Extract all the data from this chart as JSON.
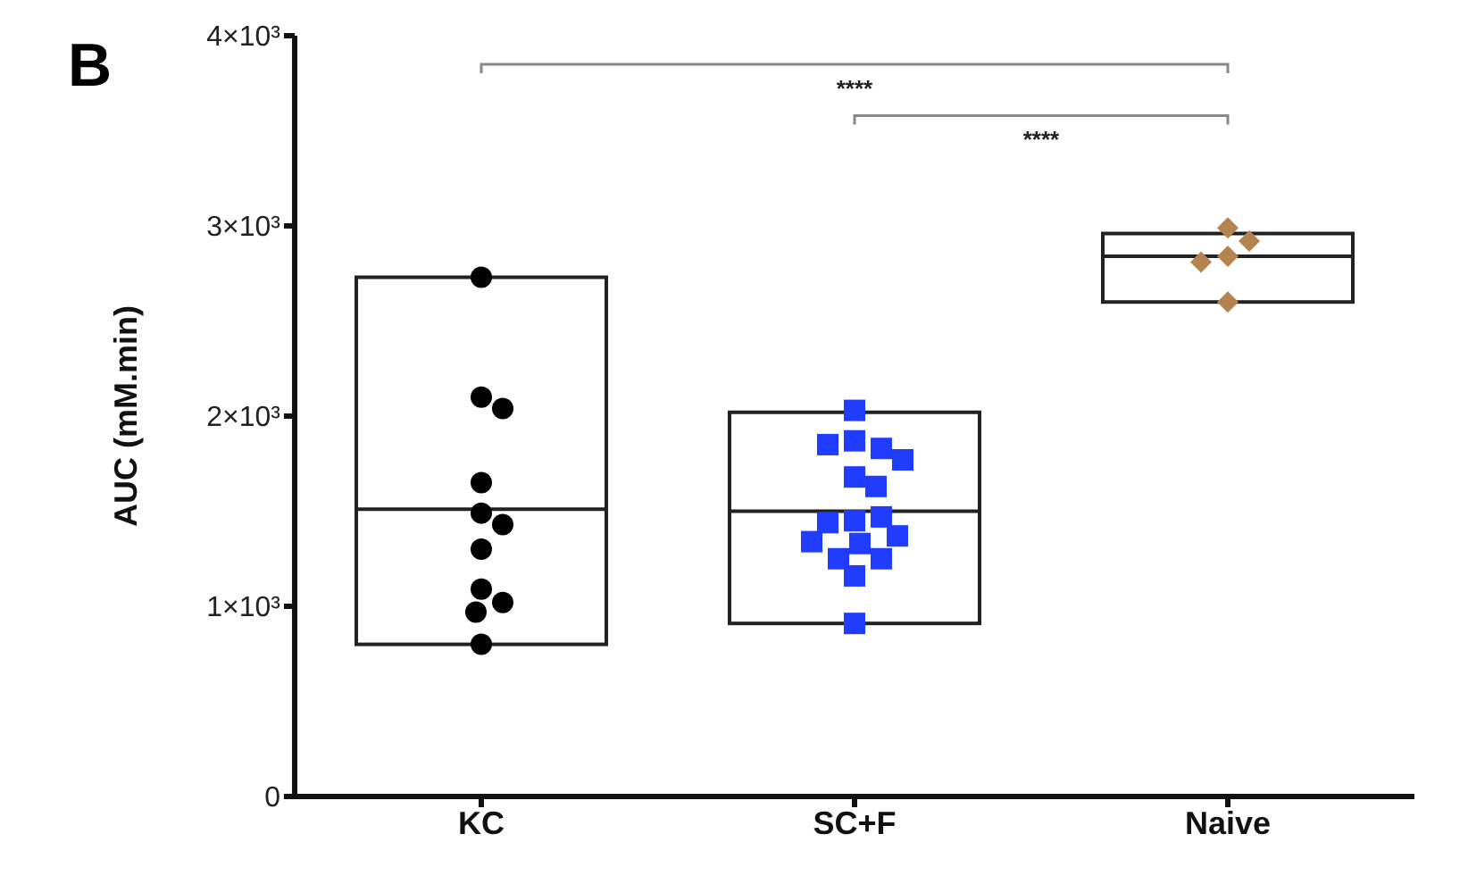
{
  "chart_data": {
    "type": "box",
    "title": "B",
    "ylabel": "AUC (mM.min)",
    "categories": [
      "KC",
      "SC+F",
      "Naive"
    ],
    "boxes": [
      {
        "low": 800,
        "q1": 800,
        "median": 1510,
        "q3": 2730,
        "high": 2730
      },
      {
        "low": 910,
        "q1": 910,
        "median": 1500,
        "q3": 2020,
        "high": 2020
      },
      {
        "low": 2600,
        "q1": 2600,
        "median": 2840,
        "q3": 2960,
        "high": 2960
      }
    ],
    "series": [
      {
        "type": "scatter",
        "color": "#000000",
        "marker": "circle",
        "x": [
          "KC",
          "KC",
          "KC",
          "KC",
          "KC",
          "KC",
          "KC",
          "KC",
          "KC",
          "KC",
          "KC"
        ],
        "values": [
          2730,
          2100,
          2040,
          1650,
          1490,
          1430,
          1300,
          1090,
          1020,
          970,
          800
        ]
      },
      {
        "type": "scatter",
        "color": "#1f3cff",
        "marker": "square",
        "x": [
          "SC+F",
          "SC+F",
          "SC+F",
          "SC+F",
          "SC+F",
          "SC+F",
          "SC+F",
          "SC+F",
          "SC+F",
          "SC+F",
          "SC+F",
          "SC+F",
          "SC+F",
          "SC+F",
          "SC+F",
          "SC+F",
          "SC+F"
        ],
        "values": [
          2030,
          1870,
          1830,
          1850,
          1770,
          1680,
          1630,
          1450,
          1470,
          1440,
          1370,
          1330,
          1340,
          1250,
          1250,
          1160,
          910
        ]
      },
      {
        "type": "scatter",
        "color": "#b5834f",
        "marker": "diamond",
        "x": [
          "Naive",
          "Naive",
          "Naive",
          "Naive",
          "Naive"
        ],
        "values": [
          2990,
          2920,
          2840,
          2810,
          2600
        ]
      }
    ],
    "ylim": [
      0,
      4000
    ],
    "yticks": [
      0,
      {
        "value": 1000,
        "label": "1×10³"
      },
      {
        "value": 2000,
        "label": "2×10³"
      },
      {
        "value": 3000,
        "label": "3×10³"
      },
      {
        "value": 4000,
        "label": "4×10³"
      }
    ],
    "grid": false,
    "legend": false,
    "annotations": [
      "****",
      "****"
    ]
  }
}
